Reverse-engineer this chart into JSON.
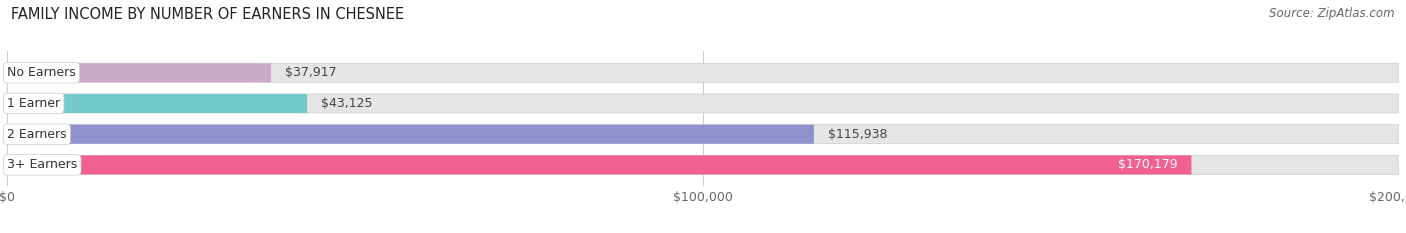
{
  "title": "FAMILY INCOME BY NUMBER OF EARNERS IN CHESNEE",
  "source": "Source: ZipAtlas.com",
  "categories": [
    "No Earners",
    "1 Earner",
    "2 Earners",
    "3+ Earners"
  ],
  "values": [
    37917,
    43125,
    115938,
    170179
  ],
  "value_labels": [
    "$37,917",
    "$43,125",
    "$115,938",
    "$170,179"
  ],
  "bar_colors": [
    "#caaacb",
    "#72cbc9",
    "#9090cc",
    "#f06090"
  ],
  "bar_bg_color": "#e5e5e5",
  "label_bg_color": "#ffffff",
  "xlim": [
    0,
    200000
  ],
  "xticks": [
    0,
    100000,
    200000
  ],
  "xtick_labels": [
    "$0",
    "$100,000",
    "$200,000"
  ],
  "title_fontsize": 10.5,
  "source_fontsize": 8.5,
  "cat_fontsize": 9,
  "value_fontsize": 9,
  "background_color": "#ffffff",
  "bar_height": 0.62,
  "fig_width": 14.06,
  "fig_height": 2.33,
  "value_inside_threshold": 0.78
}
